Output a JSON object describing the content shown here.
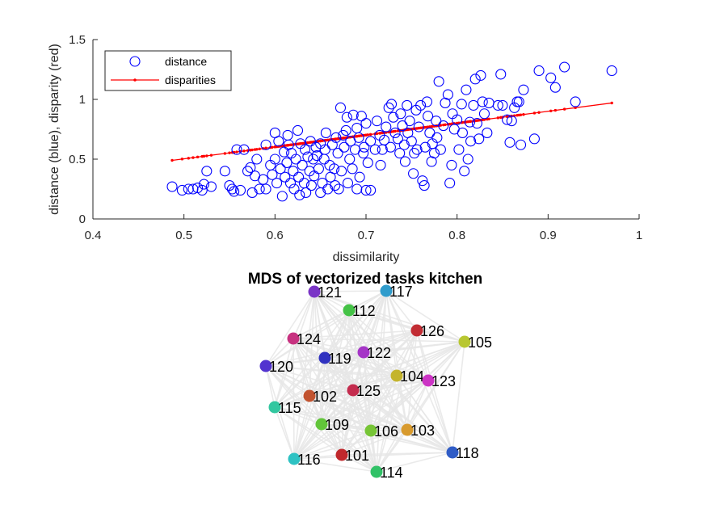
{
  "chart_data": [
    {
      "type": "scatter",
      "title": "",
      "xlabel": "dissimilarity",
      "ylabel": "distance (blue), disparity (red)",
      "xlim": [
        0.4,
        1
      ],
      "ylim": [
        0,
        1.5
      ],
      "xticks": [
        "0.4",
        "0.5",
        "0.6",
        "0.7",
        "0.8",
        "0.9",
        "1"
      ],
      "yticks": [
        "0",
        "0.5",
        "1",
        "1.5"
      ],
      "grid": false,
      "legend": "top-left",
      "series": [
        {
          "name": "distance",
          "marker": "circle",
          "color": "#0000ff",
          "points": [
            [
              0.487,
              0.27
            ],
            [
              0.498,
              0.24
            ],
            [
              0.505,
              0.25
            ],
            [
              0.51,
              0.25
            ],
            [
              0.515,
              0.26
            ],
            [
              0.52,
              0.24
            ],
            [
              0.522,
              0.29
            ],
            [
              0.525,
              0.4
            ],
            [
              0.53,
              0.27
            ],
            [
              0.545,
              0.4
            ],
            [
              0.55,
              0.28
            ],
            [
              0.553,
              0.25
            ],
            [
              0.555,
              0.23
            ],
            [
              0.558,
              0.58
            ],
            [
              0.562,
              0.24
            ],
            [
              0.566,
              0.58
            ],
            [
              0.57,
              0.4
            ],
            [
              0.573,
              0.43
            ],
            [
              0.575,
              0.22
            ],
            [
              0.578,
              0.36
            ],
            [
              0.58,
              0.5
            ],
            [
              0.583,
              0.25
            ],
            [
              0.587,
              0.33
            ],
            [
              0.59,
              0.25
            ],
            [
              0.59,
              0.62
            ],
            [
              0.595,
              0.45
            ],
            [
              0.597,
              0.37
            ],
            [
              0.6,
              0.72
            ],
            [
              0.6,
              0.5
            ],
            [
              0.602,
              0.3
            ],
            [
              0.604,
              0.65
            ],
            [
              0.606,
              0.42
            ],
            [
              0.608,
              0.19
            ],
            [
              0.61,
              0.56
            ],
            [
              0.611,
              0.35
            ],
            [
              0.613,
              0.47
            ],
            [
              0.614,
              0.7
            ],
            [
              0.615,
              0.62
            ],
            [
              0.617,
              0.3
            ],
            [
              0.618,
              0.55
            ],
            [
              0.62,
              0.4
            ],
            [
              0.621,
              0.25
            ],
            [
              0.623,
              0.5
            ],
            [
              0.625,
              0.74
            ],
            [
              0.626,
              0.35
            ],
            [
              0.627,
              0.2
            ],
            [
              0.628,
              0.63
            ],
            [
              0.63,
              0.45
            ],
            [
              0.632,
              0.3
            ],
            [
              0.633,
              0.58
            ],
            [
              0.634,
              0.22
            ],
            [
              0.636,
              0.52
            ],
            [
              0.638,
              0.4
            ],
            [
              0.639,
              0.65
            ],
            [
              0.64,
              0.28
            ],
            [
              0.642,
              0.5
            ],
            [
              0.643,
              0.36
            ],
            [
              0.645,
              0.6
            ],
            [
              0.646,
              0.53
            ],
            [
              0.648,
              0.42
            ],
            [
              0.65,
              0.63
            ],
            [
              0.65,
              0.22
            ],
            [
              0.652,
              0.3
            ],
            [
              0.654,
              0.5
            ],
            [
              0.655,
              0.58
            ],
            [
              0.656,
              0.72
            ],
            [
              0.658,
              0.25
            ],
            [
              0.66,
              0.45
            ],
            [
              0.661,
              0.35
            ],
            [
              0.663,
              0.62
            ],
            [
              0.665,
              0.42
            ],
            [
              0.666,
              0.28
            ],
            [
              0.667,
              0.68
            ],
            [
              0.669,
              0.55
            ],
            [
              0.67,
              0.25
            ],
            [
              0.672,
              0.93
            ],
            [
              0.673,
              0.4
            ],
            [
              0.675,
              0.7
            ],
            [
              0.676,
              0.6
            ],
            [
              0.678,
              0.74
            ],
            [
              0.679,
              0.85
            ],
            [
              0.68,
              0.3
            ],
            [
              0.682,
              0.5
            ],
            [
              0.683,
              0.65
            ],
            [
              0.685,
              0.42
            ],
            [
              0.686,
              0.87
            ],
            [
              0.688,
              0.58
            ],
            [
              0.69,
              0.25
            ],
            [
              0.69,
              0.76
            ],
            [
              0.692,
              0.68
            ],
            [
              0.693,
              0.35
            ],
            [
              0.695,
              0.86
            ],
            [
              0.697,
              0.55
            ],
            [
              0.698,
              0.6
            ],
            [
              0.7,
              0.8
            ],
            [
              0.7,
              0.24
            ],
            [
              0.702,
              0.47
            ],
            [
              0.705,
              0.65
            ],
            [
              0.705,
              0.24
            ],
            [
              0.71,
              0.58
            ],
            [
              0.712,
              0.82
            ],
            [
              0.715,
              0.7
            ],
            [
              0.716,
              0.45
            ],
            [
              0.718,
              0.58
            ],
            [
              0.72,
              0.66
            ],
            [
              0.722,
              0.77
            ],
            [
              0.725,
              0.93
            ],
            [
              0.727,
              0.6
            ],
            [
              0.728,
              0.96
            ],
            [
              0.73,
              0.85
            ],
            [
              0.732,
              0.72
            ],
            [
              0.735,
              0.67
            ],
            [
              0.737,
              0.55
            ],
            [
              0.738,
              0.88
            ],
            [
              0.74,
              0.78
            ],
            [
              0.742,
              0.62
            ],
            [
              0.743,
              0.48
            ],
            [
              0.745,
              0.95
            ],
            [
              0.746,
              0.72
            ],
            [
              0.748,
              0.82
            ],
            [
              0.75,
              0.65
            ],
            [
              0.752,
              0.38
            ],
            [
              0.753,
              0.55
            ],
            [
              0.755,
              0.91
            ],
            [
              0.756,
              0.58
            ],
            [
              0.758,
              0.77
            ],
            [
              0.76,
              0.95
            ],
            [
              0.762,
              0.32
            ],
            [
              0.764,
              0.28
            ],
            [
              0.765,
              0.6
            ],
            [
              0.767,
              0.98
            ],
            [
              0.768,
              0.86
            ],
            [
              0.77,
              0.72
            ],
            [
              0.772,
              0.48
            ],
            [
              0.773,
              0.63
            ],
            [
              0.775,
              0.55
            ],
            [
              0.777,
              0.82
            ],
            [
              0.778,
              0.68
            ],
            [
              0.78,
              1.15
            ],
            [
              0.782,
              0.58
            ],
            [
              0.785,
              0.78
            ],
            [
              0.787,
              0.97
            ],
            [
              0.79,
              1.04
            ],
            [
              0.792,
              0.3
            ],
            [
              0.794,
              0.45
            ],
            [
              0.795,
              0.88
            ],
            [
              0.797,
              0.75
            ],
            [
              0.8,
              0.83
            ],
            [
              0.802,
              0.58
            ],
            [
              0.805,
              0.96
            ],
            [
              0.806,
              0.72
            ],
            [
              0.808,
              0.4
            ],
            [
              0.81,
              1.08
            ],
            [
              0.812,
              0.5
            ],
            [
              0.814,
              0.81
            ],
            [
              0.815,
              0.65
            ],
            [
              0.818,
              0.95
            ],
            [
              0.82,
              1.17
            ],
            [
              0.822,
              0.8
            ],
            [
              0.824,
              0.67
            ],
            [
              0.826,
              1.2
            ],
            [
              0.828,
              0.98
            ],
            [
              0.83,
              0.88
            ],
            [
              0.833,
              0.72
            ],
            [
              0.835,
              0.97
            ],
            [
              0.845,
              0.95
            ],
            [
              0.848,
              1.21
            ],
            [
              0.85,
              0.95
            ],
            [
              0.855,
              0.83
            ],
            [
              0.858,
              0.64
            ],
            [
              0.86,
              0.82
            ],
            [
              0.863,
              0.93
            ],
            [
              0.866,
              0.98
            ],
            [
              0.868,
              0.98
            ],
            [
              0.87,
              0.62
            ],
            [
              0.873,
              1.08
            ],
            [
              0.885,
              0.67
            ],
            [
              0.89,
              1.24
            ],
            [
              0.903,
              1.18
            ],
            [
              0.908,
              1.1
            ],
            [
              0.918,
              1.27
            ],
            [
              0.93,
              0.98
            ],
            [
              0.97,
              1.24
            ]
          ]
        },
        {
          "name": "disparities",
          "marker": "dot-line",
          "color": "#ff0000",
          "points": [
            [
              0.487,
              0.49
            ],
            [
              0.97,
              0.97
            ]
          ]
        }
      ]
    },
    {
      "type": "network",
      "title": "MDS of vectorized tasks kitchen",
      "edge_color": "#e6e6e6",
      "nodes": [
        {
          "label": "101",
          "color": "#c0282c"
        },
        {
          "label": "102",
          "color": "#c2532f"
        },
        {
          "label": "103",
          "color": "#d89a2d"
        },
        {
          "label": "104",
          "color": "#c4b42c"
        },
        {
          "label": "105",
          "color": "#b8c731"
        },
        {
          "label": "106",
          "color": "#77c536"
        },
        {
          "label": "109",
          "color": "#62c53a"
        },
        {
          "label": "112",
          "color": "#44c246"
        },
        {
          "label": "114",
          "color": "#31c267"
        },
        {
          "label": "115",
          "color": "#33c7a0"
        },
        {
          "label": "116",
          "color": "#2ec2c3"
        },
        {
          "label": "117",
          "color": "#2f9ccc"
        },
        {
          "label": "118",
          "color": "#2f5cc6"
        },
        {
          "label": "119",
          "color": "#3032c0"
        },
        {
          "label": "120",
          "color": "#5233cf"
        },
        {
          "label": "121",
          "color": "#7a35c6"
        },
        {
          "label": "122",
          "color": "#a535c7"
        },
        {
          "label": "123",
          "color": "#cc34c5"
        },
        {
          "label": "124",
          "color": "#c73280"
        },
        {
          "label": "125",
          "color": "#c42c4e"
        },
        {
          "label": "126",
          "color": "#c22d34"
        }
      ]
    }
  ]
}
